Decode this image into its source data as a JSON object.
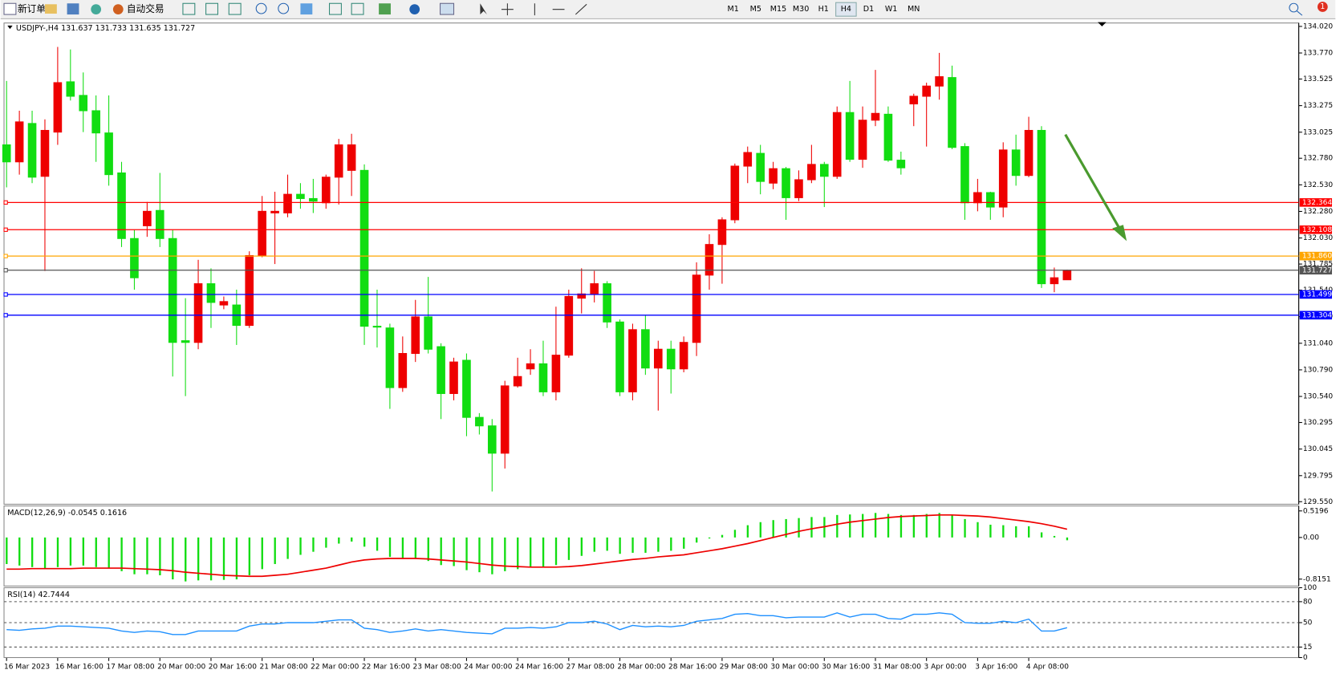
{
  "toolbar": {
    "buttons": [
      "新订单",
      "自动交易"
    ],
    "timeframes": [
      "M1",
      "M5",
      "M15",
      "M30",
      "H1",
      "H4",
      "D1",
      "W1",
      "MN"
    ],
    "active_timeframe": "H4",
    "notification_count": 1
  },
  "chart_data": [
    {
      "type": "candlestick",
      "label": "USDJPY-,H4",
      "x_labels": [
        "16 Mar 2023",
        "16 Mar 16:00",
        "17 Mar 08:00",
        "20 Mar 00:00",
        "20 Mar 16:00",
        "21 Mar 08:00",
        "22 Mar 00:00",
        "22 Mar 16:00",
        "23 Mar 08:00",
        "24 Mar 00:00",
        "24 Mar 16:00",
        "27 Mar 08:00",
        "28 Mar 00:00",
        "28 Mar 16:00",
        "29 Mar 08:00",
        "30 Mar 00:00",
        "30 Mar 16:00",
        "31 Mar 08:00",
        "3 Apr 00:00",
        "3 Apr 16:00",
        "4 Apr 08:00"
      ],
      "open": [
        132.906,
        132.746,
        133.107,
        132.61,
        133.026,
        133.499,
        133.371,
        133.227,
        133.018,
        132.642,
        132.025,
        132.145,
        132.289,
        132.025,
        131.064,
        131.048,
        131.6,
        131.4,
        131.4,
        131.208,
        131.865,
        132.266,
        132.266,
        132.441,
        132.401,
        132.361,
        132.602,
        132.666,
        132.666,
        131.2,
        131.184,
        130.623,
        130.944,
        131.288,
        131.008,
        130.567,
        130.88,
        130.343,
        130.263,
        130.006,
        130.639,
        130.799,
        130.847,
        130.583,
        130.928,
        131.464,
        131.504,
        131.6,
        131.24,
        130.583,
        131.168,
        130.807,
        130.984,
        130.799,
        131.048,
        131.681,
        131.969,
        132.201,
        132.706,
        132.826,
        132.546,
        132.682,
        132.409,
        132.578,
        132.722,
        132.61,
        133.21,
        132.77,
        133.138,
        133.194,
        132.762,
        133.291,
        133.363,
        133.459,
        133.539,
        132.89,
        132.361,
        132.457,
        132.321,
        132.858,
        132.618,
        133.042,
        131.6,
        131.637
      ],
      "high": [
        133.507,
        133.227,
        133.227,
        133.146,
        133.827,
        133.803,
        133.587,
        133.371,
        133.371,
        132.746,
        132.105,
        132.369,
        132.642,
        132.105,
        131.464,
        131.825,
        131.745,
        131.48,
        131.544,
        131.905,
        132.425,
        132.465,
        132.626,
        132.546,
        132.586,
        132.626,
        132.962,
        133.01,
        132.722,
        131.544,
        131.224,
        131.104,
        131.448,
        131.664,
        131.04,
        130.904,
        130.944,
        130.383,
        130.327,
        130.687,
        130.904,
        130.984,
        131.064,
        131.384,
        131.544,
        131.745,
        131.72,
        131.624,
        131.264,
        131.224,
        131.304,
        131.064,
        131.064,
        131.104,
        131.801,
        132.065,
        132.225,
        132.73,
        132.89,
        132.906,
        132.746,
        132.698,
        132.666,
        132.906,
        132.746,
        133.267,
        133.507,
        133.267,
        133.611,
        133.267,
        132.842,
        133.387,
        133.491,
        133.771,
        133.651,
        132.922,
        132.586,
        132.465,
        132.93,
        133.002,
        133.17,
        133.082,
        131.752,
        131.733
      ],
      "low": [
        132.506,
        132.626,
        132.546,
        131.72,
        132.906,
        133.323,
        133.026,
        132.746,
        132.522,
        131.945,
        131.544,
        132.041,
        131.945,
        130.727,
        130.543,
        130.984,
        131.184,
        131.36,
        131.024,
        131.184,
        131.849,
        131.785,
        132.225,
        132.305,
        132.265,
        132.305,
        132.345,
        132.425,
        131.024,
        131.0,
        130.423,
        130.583,
        130.864,
        130.944,
        130.327,
        130.503,
        130.166,
        130.182,
        129.646,
        129.862,
        130.623,
        130.743,
        130.543,
        130.503,
        130.904,
        131.32,
        131.424,
        131.184,
        130.543,
        130.503,
        130.743,
        130.407,
        130.567,
        130.767,
        130.92,
        131.544,
        131.6,
        132.169,
        132.546,
        132.441,
        132.489,
        132.201,
        132.377,
        132.546,
        132.321,
        132.586,
        132.746,
        132.69,
        133.082,
        132.746,
        132.626,
        133.082,
        132.89,
        133.331,
        132.866,
        132.201,
        132.281,
        132.201,
        132.225,
        132.522,
        132.602,
        131.56,
        131.52,
        131.635
      ],
      "close": [
        132.746,
        133.122,
        132.602,
        133.042,
        133.491,
        133.363,
        133.227,
        133.018,
        132.626,
        132.025,
        131.656,
        132.281,
        132.025,
        131.048,
        131.048,
        131.6,
        131.424,
        131.432,
        131.208,
        131.865,
        132.281,
        132.281,
        132.441,
        132.401,
        132.377,
        132.602,
        132.906,
        132.906,
        131.2,
        131.192,
        130.623,
        130.944,
        131.288,
        130.984,
        130.567,
        130.864,
        130.343,
        130.263,
        130.006,
        130.639,
        130.727,
        130.847,
        130.583,
        130.928,
        131.48,
        131.504,
        131.6,
        131.24,
        130.583,
        131.168,
        130.807,
        130.984,
        130.799,
        131.048,
        131.681,
        131.969,
        132.201,
        132.706,
        132.834,
        132.562,
        132.682,
        132.409,
        132.578,
        132.722,
        132.61,
        133.21,
        132.77,
        133.138,
        133.202,
        132.762,
        132.69,
        133.363,
        133.459,
        133.547,
        132.882,
        132.361,
        132.457,
        132.321,
        132.858,
        132.618,
        133.042,
        131.6,
        131.656,
        131.727
      ],
      "colors": {
        "up": "#ee0000",
        "down": "#11dd11"
      },
      "ylim": [
        129.526,
        134.052
      ],
      "yticks": [
        {
          "value": 134.02,
          "label": "134.020"
        },
        {
          "value": 133.77,
          "label": "133.770"
        },
        133.525,
        133.275,
        133.025,
        {
          "value": 132.78,
          "label": "132.780"
        },
        {
          "value": 132.53,
          "label": "132.530"
        },
        {
          "value": 132.28,
          "label": "132.280"
        },
        {
          "value": 132.03,
          "label": "132.030"
        },
        131.785,
        {
          "value": 131.54,
          "label": "131.540"
        },
        {
          "value": 131.29,
          "label": "131.290"
        },
        {
          "value": 131.04,
          "label": "131.040"
        },
        {
          "value": 130.79,
          "label": "130.790"
        },
        {
          "value": 130.54,
          "label": "130.540"
        },
        130.295,
        130.045,
        129.795,
        {
          "value": 129.55,
          "label": "129.550"
        }
      ],
      "levels": [
        {
          "value": 132.364,
          "color": "#ff0000"
        },
        {
          "value": 132.108,
          "color": "#ff0000"
        },
        {
          "value": 131.86,
          "label": "131.860",
          "color": "#ffa500"
        },
        {
          "value": 131.727,
          "color": "#555555"
        },
        {
          "value": 131.499,
          "color": "#0000ff"
        },
        {
          "value": 131.304,
          "color": "#0000ff"
        }
      ]
    },
    {
      "type": "macd",
      "label": "MACD(12,26,9)",
      "histogram": [
        -0.52,
        -0.55,
        -0.58,
        -0.6,
        -0.58,
        -0.55,
        -0.55,
        -0.58,
        -0.6,
        -0.66,
        -0.72,
        -0.72,
        -0.74,
        -0.82,
        -0.86,
        -0.84,
        -0.84,
        -0.83,
        -0.82,
        -0.74,
        -0.62,
        -0.52,
        -0.42,
        -0.34,
        -0.28,
        -0.2,
        -0.12,
        -0.08,
        -0.18,
        -0.26,
        -0.38,
        -0.42,
        -0.42,
        -0.46,
        -0.54,
        -0.56,
        -0.64,
        -0.68,
        -0.72,
        -0.66,
        -0.62,
        -0.58,
        -0.58,
        -0.54,
        -0.44,
        -0.36,
        -0.28,
        -0.26,
        -0.32,
        -0.3,
        -0.3,
        -0.28,
        -0.26,
        -0.22,
        -0.1,
        -0.02,
        0.05,
        0.15,
        0.24,
        0.3,
        0.34,
        0.36,
        0.38,
        0.4,
        0.4,
        0.44,
        0.45,
        0.46,
        0.48,
        0.46,
        0.44,
        0.44,
        0.46,
        0.48,
        0.44,
        0.36,
        0.3,
        0.25,
        0.24,
        0.22,
        0.22,
        0.1,
        0.03,
        -0.0545
      ],
      "signal": [
        -0.62,
        -0.62,
        -0.61,
        -0.61,
        -0.61,
        -0.61,
        -0.6,
        -0.6,
        -0.6,
        -0.6,
        -0.61,
        -0.62,
        -0.63,
        -0.65,
        -0.68,
        -0.7,
        -0.72,
        -0.74,
        -0.75,
        -0.76,
        -0.76,
        -0.74,
        -0.72,
        -0.68,
        -0.64,
        -0.6,
        -0.54,
        -0.48,
        -0.44,
        -0.42,
        -0.41,
        -0.41,
        -0.41,
        -0.42,
        -0.44,
        -0.46,
        -0.48,
        -0.51,
        -0.54,
        -0.56,
        -0.57,
        -0.58,
        -0.58,
        -0.58,
        -0.57,
        -0.55,
        -0.52,
        -0.49,
        -0.46,
        -0.43,
        -0.41,
        -0.38,
        -0.36,
        -0.34,
        -0.3,
        -0.26,
        -0.22,
        -0.17,
        -0.12,
        -0.06,
        0.0,
        0.06,
        0.12,
        0.17,
        0.21,
        0.26,
        0.3,
        0.33,
        0.36,
        0.39,
        0.41,
        0.42,
        0.43,
        0.44,
        0.44,
        0.43,
        0.42,
        0.4,
        0.37,
        0.34,
        0.31,
        0.27,
        0.22,
        0.1616
      ],
      "colors": {
        "histogram": "#11dd11",
        "signal": "#ee0000"
      },
      "ylim": [
        -0.95,
        0.617
      ],
      "yticks": [
        0.5196,
        {
          "value": 0,
          "label": "0.00"
        },
        -0.8151
      ]
    },
    {
      "type": "line",
      "label": "RSI(14)",
      "values": [
        40,
        39,
        41,
        42,
        45,
        45,
        44,
        43,
        42,
        38,
        36,
        38,
        37,
        33,
        33,
        38,
        38,
        38,
        38,
        45,
        48,
        48,
        50,
        50,
        50,
        52,
        54,
        54,
        42,
        40,
        36,
        38,
        41,
        38,
        40,
        38,
        36,
        35,
        34,
        42,
        42,
        43,
        42,
        44,
        50,
        50,
        52,
        48,
        40,
        46,
        44,
        45,
        44,
        46,
        52,
        54,
        56,
        62,
        63,
        60,
        60,
        57,
        58,
        58,
        58,
        64,
        58,
        62,
        62,
        56,
        55,
        62,
        62,
        64,
        62,
        50,
        49,
        49,
        52,
        50,
        55,
        38,
        38,
        42.7444
      ],
      "color": "#1e90ff",
      "ylim": [
        0,
        100
      ],
      "yticks": [
        100,
        80,
        50,
        15,
        0
      ],
      "dashed_levels": [
        80,
        50,
        15
      ]
    }
  ]
}
